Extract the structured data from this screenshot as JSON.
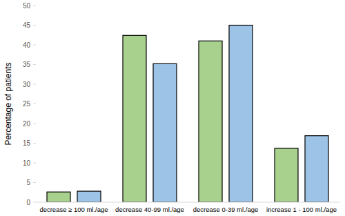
{
  "chart_data": {
    "type": "bar",
    "y_label": "Percentage of patients",
    "categories": [
      "decrease ≥ 100 ml./age",
      "decrease 40-99 ml./age",
      "decrease 0-39 ml./age",
      "increase 1 - 100 ml./age"
    ],
    "series": [
      {
        "color": "#a9d18e",
        "values": [
          2.6,
          42.4,
          41.0,
          13.7
        ]
      },
      {
        "color": "#9dc3e6",
        "values": [
          2.8,
          35.2,
          45.0,
          16.9
        ]
      }
    ],
    "ylim": [
      0,
      50
    ],
    "yticks": [
      0,
      5,
      10,
      15,
      20,
      25,
      30,
      35,
      40,
      45,
      50
    ],
    "grid": false
  }
}
